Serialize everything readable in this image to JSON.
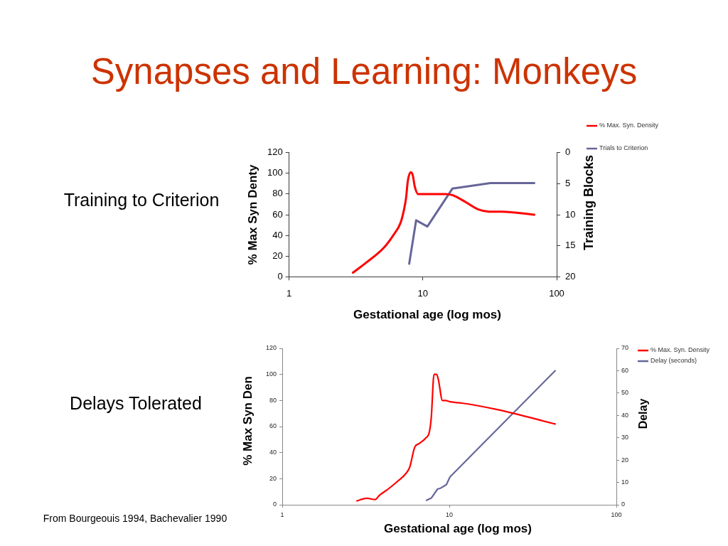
{
  "chart_data": [
    {
      "type": "line",
      "title": "Synapses and Learning: Monkeys",
      "subtitle": "Training to Criterion",
      "xlabel": "Gestational age (log mos)",
      "ylabel": "% Max Syn Denty",
      "y2label": "Training Blocks",
      "log": "x",
      "xlim": [
        1,
        100
      ],
      "xticks": [
        1,
        10,
        100
      ],
      "ylim": [
        0,
        120
      ],
      "yticks": [
        0,
        20,
        40,
        60,
        80,
        100,
        120
      ],
      "y2lim": [
        20,
        0
      ],
      "y2ticks": [
        0,
        5,
        10,
        15,
        20
      ],
      "legend": "top right",
      "series": [
        {
          "name": "% Max. Syn. Density",
          "color": "#ff0000",
          "x": [
            3.0,
            3.8,
            5.1,
            6.0,
            6.8,
            7.2,
            7.5,
            7.7,
            8.1,
            8.4,
            8.7,
            9.2,
            11.5,
            14.7,
            16.6,
            20.4,
            26,
            31,
            39,
            68
          ],
          "values": [
            4,
            14,
            28,
            40,
            52,
            64,
            77,
            92,
            101,
            98,
            87,
            80,
            80,
            80,
            79,
            73,
            65,
            63,
            63,
            60
          ]
        },
        {
          "name": "Trials to Criterion",
          "color": "#666699",
          "axis": "y2",
          "x": [
            7.9,
            8.9,
            10.8,
            16.6,
            32,
            68
          ],
          "values": [
            17.9,
            10.9,
            11.9,
            5.8,
            4.9,
            4.9
          ]
        }
      ]
    },
    {
      "type": "line",
      "title": "Delays Tolerated",
      "xlabel": "Gestational age (log mos)",
      "ylabel": "% Max Syn Den",
      "y2label": "Delay",
      "log": "x",
      "xlim": [
        1,
        100
      ],
      "xticks": [
        1,
        10,
        100
      ],
      "ylim": [
        0,
        120
      ],
      "yticks": [
        0,
        20,
        40,
        60,
        80,
        100,
        120
      ],
      "y2lim": [
        0,
        70
      ],
      "y2ticks": [
        0,
        10,
        20,
        30,
        40,
        50,
        60,
        70
      ],
      "legend": "top right",
      "annotations": [
        "From Bourgeouis 1994, Bachevalier 1990"
      ],
      "series": [
        {
          "name": "% Max. Syn. Density",
          "color": "#ff0000",
          "x": [
            2.8,
            3.2,
            3.6,
            3.8,
            4.3,
            4.9,
            5.5,
            5.8,
            6.2,
            6.6,
            7.2,
            7.6,
            7.8,
            8.1,
            8.4,
            8.6,
            9.1,
            9.5,
            10.1,
            11.9,
            19.4,
            43
          ],
          "values": [
            3,
            5,
            4,
            7,
            12,
            18,
            24,
            29,
            44,
            47,
            51,
            56,
            67,
            100,
            100,
            96,
            80,
            80,
            79,
            78,
            73,
            62
          ]
        },
        {
          "name": "Delay (seconds)",
          "color": "#666699",
          "axis": "y2",
          "x": [
            7.3,
            7.8,
            8.5,
            8.9,
            9.6,
            10.1,
            43
          ],
          "values": [
            2,
            3,
            7,
            7.5,
            9,
            12.5,
            60
          ]
        }
      ]
    }
  ]
}
